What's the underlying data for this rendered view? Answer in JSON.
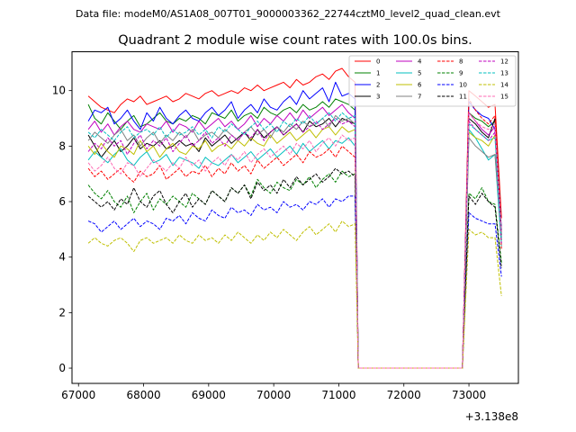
{
  "header": {
    "data_file": "Data file: modeM0/AS1A08_007T01_9000003362_22744cztM0_level2_quad_clean.evt"
  },
  "chart_data": {
    "type": "line",
    "title": "Quadrant 2 module wise count rates with 100.0s bins.",
    "xlabel": "",
    "ylabel": "",
    "x_offset_label": "+3.138e8",
    "xlim": [
      66900,
      73760
    ],
    "ylim": [
      -0.55,
      11.4
    ],
    "xticks": [
      67000,
      68000,
      69000,
      70000,
      71000,
      72000,
      73000
    ],
    "xtick_labels": [
      "67000",
      "68000",
      "69000",
      "70000",
      "71000",
      "72000",
      "73000"
    ],
    "yticks": [
      0,
      2,
      4,
      6,
      8,
      10
    ],
    "ytick_labels": [
      "0",
      "2",
      "4",
      "6",
      "8",
      "10"
    ],
    "grid": false,
    "legend_position": "top-right",
    "x_segments": [
      {
        "start": 67150,
        "end": 71300,
        "step": 100
      },
      {
        "start": 72900,
        "end": 73500,
        "step": 100
      }
    ],
    "gap_value": 0,
    "series": [
      {
        "name": "0",
        "color": "#ff0000",
        "dash": "solid",
        "seg1": [
          9.8,
          9.6,
          9.4,
          9.3,
          9.2,
          9.5,
          9.7,
          9.6,
          9.8,
          9.5,
          9.6,
          9.7,
          9.8,
          9.6,
          9.7,
          9.9,
          9.8,
          9.7,
          9.9,
          10.0,
          9.8,
          9.9,
          10.0,
          9.9,
          10.1,
          10.0,
          10.2,
          10.0,
          10.1,
          10.2,
          10.3,
          10.1,
          10.4,
          10.2,
          10.3,
          10.5,
          10.6,
          10.4,
          10.7,
          10.8,
          10.5,
          10.3
        ],
        "seg2": [
          0,
          10.0,
          9.8,
          9.6,
          9.4,
          9.5,
          5.4
        ]
      },
      {
        "name": "1",
        "color": "#008000",
        "dash": "solid",
        "seg1": [
          9.5,
          9.0,
          8.8,
          9.2,
          8.9,
          8.6,
          8.9,
          9.1,
          8.7,
          8.8,
          9.0,
          9.2,
          8.9,
          8.8,
          9.0,
          8.9,
          9.1,
          9.0,
          8.8,
          9.2,
          9.1,
          9.0,
          9.3,
          8.9,
          9.1,
          9.2,
          9.0,
          9.4,
          9.2,
          9.1,
          9.3,
          9.4,
          9.2,
          9.5,
          9.3,
          9.4,
          9.6,
          9.4,
          9.7,
          9.6,
          9.5,
          9.3
        ],
        "seg2": [
          0,
          9.2,
          9.0,
          8.9,
          8.7,
          8.9,
          4.8
        ]
      },
      {
        "name": "2",
        "color": "#0000ff",
        "dash": "solid",
        "seg1": [
          8.9,
          9.3,
          9.2,
          9.4,
          8.8,
          9.0,
          9.3,
          8.9,
          8.6,
          9.2,
          8.9,
          9.4,
          9.0,
          8.8,
          9.1,
          9.3,
          9.0,
          8.9,
          9.2,
          9.4,
          9.1,
          9.3,
          9.6,
          9.0,
          9.3,
          9.5,
          9.2,
          9.7,
          9.4,
          9.3,
          9.6,
          9.8,
          9.5,
          10.0,
          9.7,
          9.9,
          10.1,
          9.6,
          10.3,
          9.8,
          9.9,
          9.7
        ],
        "seg2": [
          0,
          9.6,
          9.3,
          9.1,
          9.0,
          8.6,
          5.0
        ]
      },
      {
        "name": "3",
        "color": "#000000",
        "dash": "solid",
        "seg1": [
          8.4,
          8.0,
          7.6,
          7.9,
          8.2,
          7.8,
          8.0,
          8.3,
          7.9,
          8.1,
          8.0,
          8.2,
          7.9,
          8.0,
          8.2,
          8.0,
          8.1,
          7.8,
          8.3,
          8.0,
          8.2,
          8.4,
          8.1,
          8.3,
          8.5,
          8.2,
          8.6,
          8.3,
          8.5,
          8.7,
          8.4,
          8.6,
          8.8,
          8.5,
          8.9,
          8.7,
          8.8,
          9.0,
          8.7,
          9.0,
          8.9,
          8.8
        ],
        "seg2": [
          0,
          9.0,
          8.8,
          8.5,
          8.3,
          9.0,
          4.9
        ]
      },
      {
        "name": "4",
        "color": "#bf00bf",
        "dash": "solid",
        "seg1": [
          8.6,
          8.9,
          8.5,
          8.8,
          8.4,
          8.7,
          8.9,
          8.6,
          8.5,
          8.8,
          8.7,
          8.6,
          8.9,
          8.5,
          8.8,
          8.7,
          8.5,
          8.9,
          8.6,
          8.8,
          9.0,
          8.7,
          8.9,
          8.6,
          8.8,
          9.1,
          8.7,
          9.0,
          8.8,
          9.1,
          8.9,
          9.2,
          8.9,
          9.3,
          9.0,
          9.2,
          9.4,
          9.1,
          9.3,
          9.5,
          9.2,
          9.0
        ],
        "seg2": [
          0,
          9.2,
          8.9,
          8.6,
          8.4,
          8.7,
          4.7
        ]
      },
      {
        "name": "5",
        "color": "#00bfbf",
        "dash": "solid",
        "seg1": [
          7.5,
          7.8,
          7.6,
          7.4,
          7.7,
          7.9,
          7.5,
          7.3,
          7.6,
          7.8,
          7.4,
          7.5,
          7.7,
          7.3,
          7.6,
          7.5,
          7.4,
          7.2,
          7.6,
          7.4,
          7.3,
          7.5,
          7.7,
          7.4,
          7.6,
          7.8,
          7.5,
          7.7,
          7.9,
          7.6,
          7.8,
          8.0,
          7.7,
          8.1,
          7.8,
          8.0,
          8.2,
          7.9,
          8.2,
          8.1,
          8.3,
          8.0
        ],
        "seg2": [
          0,
          8.6,
          8.3,
          7.9,
          7.5,
          7.7,
          4.4
        ]
      },
      {
        "name": "6",
        "color": "#bfbf00",
        "dash": "solid",
        "seg1": [
          8.0,
          7.7,
          8.1,
          7.8,
          7.6,
          8.0,
          7.9,
          7.7,
          8.2,
          7.8,
          8.0,
          7.6,
          7.9,
          8.1,
          7.8,
          7.7,
          8.0,
          7.9,
          8.2,
          7.8,
          8.0,
          8.1,
          7.9,
          8.2,
          8.0,
          8.3,
          8.1,
          8.0,
          8.4,
          8.1,
          8.3,
          8.5,
          8.2,
          8.4,
          8.6,
          8.3,
          8.6,
          8.7,
          8.4,
          8.7,
          8.5,
          8.6
        ],
        "seg2": [
          0,
          8.5,
          8.3,
          8.2,
          8.0,
          8.4,
          4.6
        ]
      },
      {
        "name": "7",
        "color": "#808080",
        "dash": "solid",
        "seg1": [
          8.2,
          8.5,
          8.3,
          8.1,
          8.4,
          8.6,
          8.2,
          8.4,
          8.0,
          8.3,
          8.5,
          8.1,
          8.4,
          8.2,
          8.5,
          8.3,
          8.6,
          8.2,
          8.4,
          8.5,
          8.3,
          8.6,
          8.4,
          8.2,
          8.5,
          8.7,
          8.4,
          8.6,
          8.3,
          8.7,
          8.5,
          8.8,
          8.6,
          8.9,
          8.7,
          8.8,
          9.0,
          8.7,
          9.1,
          8.9,
          9.0,
          8.8
        ],
        "seg2": [
          0,
          8.3,
          8.0,
          7.8,
          7.6,
          7.7,
          4.8
        ]
      },
      {
        "name": "8",
        "color": "#ff0000",
        "dash": "dashed",
        "seg1": [
          7.2,
          6.9,
          7.1,
          6.8,
          7.0,
          7.2,
          6.9,
          6.7,
          7.1,
          6.9,
          7.0,
          7.3,
          6.8,
          7.0,
          7.2,
          6.9,
          7.1,
          7.0,
          7.3,
          6.9,
          7.2,
          7.0,
          7.4,
          7.1,
          7.3,
          7.0,
          7.5,
          7.2,
          7.4,
          7.6,
          7.3,
          7.5,
          7.7,
          7.4,
          7.8,
          7.6,
          7.7,
          7.9,
          7.6,
          8.0,
          7.8,
          7.6
        ],
        "seg2": [
          0,
          9.7,
          9.3,
          9.0,
          8.8,
          9.1,
          4.3
        ]
      },
      {
        "name": "9",
        "color": "#008000",
        "dash": "dashed",
        "seg1": [
          6.6,
          6.3,
          6.1,
          6.4,
          6.0,
          5.8,
          6.2,
          5.6,
          6.0,
          6.3,
          5.7,
          6.1,
          5.9,
          6.2,
          6.0,
          5.8,
          6.3,
          6.1,
          5.9,
          6.4,
          6.2,
          6.0,
          6.5,
          6.3,
          6.6,
          6.2,
          6.8,
          6.5,
          6.3,
          6.7,
          6.5,
          6.4,
          6.8,
          6.6,
          6.9,
          6.5,
          6.8,
          7.0,
          6.7,
          7.1,
          6.9,
          7.0
        ],
        "seg2": [
          0,
          6.3,
          6.1,
          6.5,
          6.0,
          5.9,
          3.8
        ]
      },
      {
        "name": "10",
        "color": "#0000ff",
        "dash": "dashed",
        "seg1": [
          5.3,
          5.2,
          4.9,
          5.1,
          5.3,
          5.0,
          5.2,
          5.4,
          5.1,
          5.3,
          5.2,
          5.0,
          5.4,
          5.3,
          5.5,
          5.2,
          5.6,
          5.4,
          5.3,
          5.7,
          5.5,
          5.4,
          5.8,
          5.6,
          5.7,
          5.5,
          5.9,
          5.7,
          5.8,
          5.6,
          6.0,
          5.8,
          5.9,
          5.7,
          6.0,
          5.9,
          6.1,
          5.8,
          6.1,
          6.0,
          6.2,
          6.2
        ],
        "seg2": [
          0,
          5.6,
          5.4,
          5.3,
          5.2,
          5.2,
          3.3
        ]
      },
      {
        "name": "11",
        "color": "#000000",
        "dash": "dashed",
        "seg1": [
          6.2,
          6.0,
          5.8,
          6.0,
          5.7,
          6.1,
          5.9,
          6.5,
          6.0,
          5.8,
          6.2,
          6.4,
          5.9,
          5.6,
          6.0,
          6.3,
          5.8,
          6.1,
          5.9,
          6.4,
          6.2,
          6.0,
          6.5,
          6.3,
          6.6,
          6.1,
          6.7,
          6.4,
          6.6,
          6.3,
          6.8,
          6.5,
          6.9,
          6.6,
          6.8,
          7.0,
          6.7,
          6.9,
          7.2,
          7.0,
          7.1,
          6.9
        ],
        "seg2": [
          0,
          6.2,
          5.9,
          6.3,
          6.0,
          5.8,
          3.6
        ]
      },
      {
        "name": "12",
        "color": "#bf00bf",
        "dash": "dashed",
        "seg1": [
          7.8,
          8.1,
          7.9,
          8.3,
          8.0,
          8.2,
          7.7,
          8.1,
          8.4,
          7.9,
          8.2,
          8.0,
          8.3,
          7.8,
          8.1,
          8.4,
          8.0,
          8.2,
          8.5,
          8.1,
          8.3,
          8.0,
          8.4,
          8.2,
          8.5,
          8.3,
          8.6,
          8.2,
          8.5,
          8.7,
          8.4,
          8.6,
          8.8,
          8.5,
          8.7,
          8.9,
          8.6,
          8.8,
          9.0,
          8.8,
          8.9,
          8.7
        ],
        "seg2": [
          0,
          8.9,
          8.6,
          8.4,
          8.2,
          8.5,
          4.5
        ]
      },
      {
        "name": "13",
        "color": "#00bfbf",
        "dash": "dashed",
        "seg1": [
          8.5,
          8.3,
          8.6,
          8.4,
          8.2,
          8.5,
          8.7,
          8.3,
          8.5,
          8.6,
          8.4,
          8.7,
          8.3,
          8.6,
          8.4,
          8.5,
          8.7,
          8.4,
          8.6,
          8.3,
          8.7,
          8.5,
          8.8,
          8.6,
          8.4,
          8.7,
          8.9,
          8.6,
          8.8,
          8.5,
          8.9,
          8.7,
          9.0,
          8.8,
          9.1,
          8.8,
          9.0,
          9.2,
          8.9,
          9.2,
          9.0,
          9.1
        ],
        "seg2": [
          0,
          8.8,
          8.6,
          8.4,
          8.2,
          8.3,
          4.6
        ]
      },
      {
        "name": "14",
        "color": "#bfbf00",
        "dash": "dashed",
        "seg1": [
          4.5,
          4.7,
          4.5,
          4.4,
          4.6,
          4.7,
          4.5,
          4.2,
          4.6,
          4.7,
          4.5,
          4.6,
          4.7,
          4.5,
          4.8,
          4.6,
          4.5,
          4.8,
          4.6,
          4.7,
          4.5,
          4.8,
          4.6,
          4.9,
          4.7,
          4.5,
          4.8,
          4.6,
          4.9,
          4.7,
          5.0,
          4.8,
          4.6,
          4.9,
          5.1,
          4.8,
          5.0,
          5.2,
          4.9,
          5.3,
          5.1,
          5.2
        ],
        "seg2": [
          0,
          5.0,
          4.8,
          4.9,
          4.7,
          4.7,
          2.6
        ]
      },
      {
        "name": "15",
        "color": "#ff69b4",
        "dash": "dashed",
        "seg1": [
          7.4,
          7.1,
          7.3,
          7.6,
          7.2,
          7.0,
          7.4,
          7.3,
          6.9,
          7.2,
          7.5,
          7.3,
          7.1,
          7.4,
          7.2,
          7.6,
          7.3,
          7.5,
          7.1,
          7.4,
          7.6,
          7.3,
          7.7,
          7.5,
          7.8,
          7.4,
          7.7,
          7.9,
          7.6,
          7.8,
          8.0,
          7.7,
          8.1,
          7.9,
          8.2,
          7.8,
          8.1,
          8.3,
          8.0,
          8.4,
          8.2,
          8.3
        ],
        "seg2": [
          0,
          9.2,
          8.9,
          8.7,
          8.6,
          8.8,
          4.9
        ]
      }
    ]
  }
}
